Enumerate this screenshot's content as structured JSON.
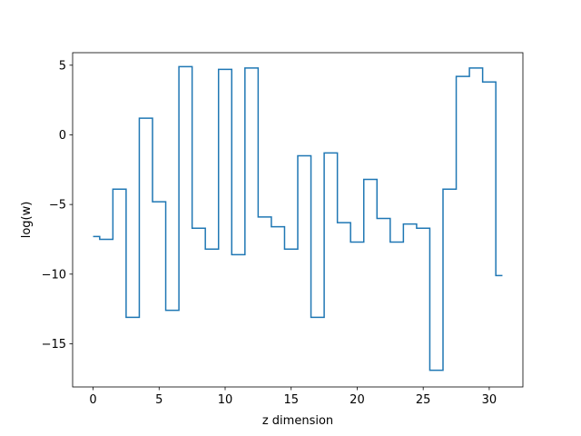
{
  "chart_data": {
    "type": "line",
    "drawstyle": "steps-mid",
    "title": "",
    "xlabel": "z dimension",
    "ylabel": "log(w)",
    "xlim": [
      -1.55,
      32.55
    ],
    "ylim": [
      -18.1,
      5.9
    ],
    "xticks": [
      0,
      5,
      10,
      15,
      20,
      25,
      30
    ],
    "yticks": [
      5,
      0,
      -5,
      -10,
      -15
    ],
    "xtick_labels": [
      "0",
      "5",
      "10",
      "15",
      "20",
      "25",
      "30"
    ],
    "ytick_labels": [
      "5",
      "0",
      "−5",
      "−10",
      "−15"
    ],
    "grid": false,
    "series": [
      {
        "color": "#1f77b4",
        "x": [
          0,
          1,
          2,
          3,
          4,
          5,
          6,
          7,
          8,
          9,
          10,
          11,
          12,
          13,
          14,
          15,
          16,
          17,
          18,
          19,
          20,
          21,
          22,
          23,
          24,
          25,
          26,
          27,
          28,
          29,
          30,
          31
        ],
        "values": [
          -7.3,
          -7.5,
          -3.9,
          -13.1,
          1.2,
          -4.8,
          -12.6,
          4.9,
          -6.7,
          -8.2,
          4.7,
          -8.6,
          4.8,
          -5.9,
          -6.6,
          -8.2,
          -1.5,
          -13.1,
          -1.3,
          -6.3,
          -7.7,
          -3.2,
          -6.0,
          -7.7,
          -6.4,
          -6.7,
          -16.9,
          -3.9,
          4.2,
          4.8,
          3.8,
          -10.1
        ]
      }
    ]
  }
}
